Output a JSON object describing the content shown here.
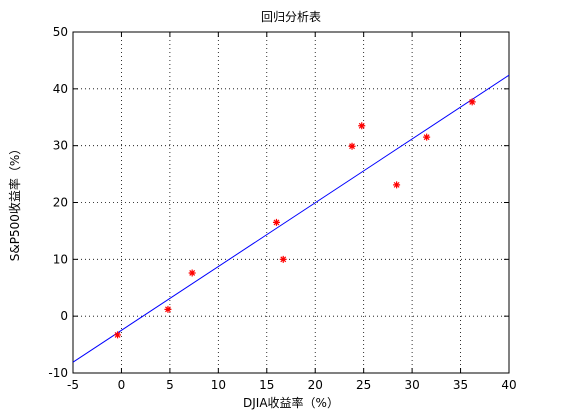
{
  "chart_data": {
    "type": "scatter",
    "title": "回归分析表",
    "xlabel": "DJIA收益率（%）",
    "ylabel": "S&P500收益率（%）",
    "xlim": [
      -5,
      40
    ],
    "ylim": [
      -10,
      50
    ],
    "xticks": [
      -5,
      0,
      5,
      10,
      15,
      20,
      25,
      30,
      35,
      40
    ],
    "yticks": [
      -10,
      0,
      10,
      20,
      30,
      40,
      50
    ],
    "grid": true,
    "points": {
      "x": [
        -0.4,
        4.8,
        7.3,
        16.0,
        16.7,
        23.8,
        24.8,
        28.4,
        31.5,
        36.2
      ],
      "y": [
        -3.3,
        1.2,
        7.6,
        16.5,
        10.0,
        29.9,
        33.5,
        23.1,
        31.5,
        37.7
      ],
      "color": "#ff0000"
    },
    "fit_line": {
      "x": [
        -5,
        40
      ],
      "y": [
        -8.1,
        42.4
      ],
      "color": "#0000ff"
    }
  }
}
